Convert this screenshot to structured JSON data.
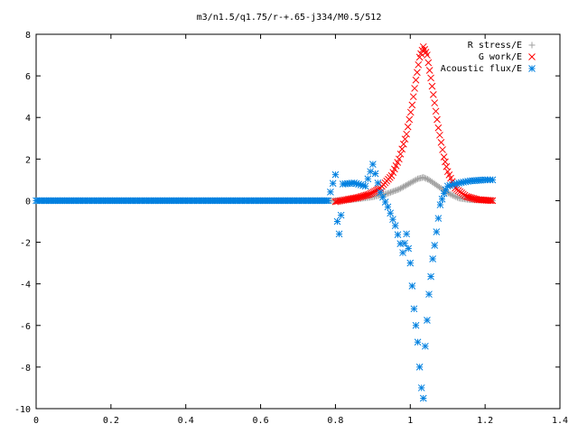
{
  "chart_data": {
    "type": "scatter",
    "title": "m3/n1.5/q1.75/r-+.65-j334/M0.5/512",
    "xlabel": "",
    "ylabel": "",
    "xlim": [
      0,
      1.4
    ],
    "ylim": [
      -10,
      8
    ],
    "xticks": [
      "0",
      "0.2",
      "0.4",
      "0.6",
      "0.8",
      "1",
      "1.2",
      "1.4"
    ],
    "yticks": [
      "-10",
      "-8",
      "-6",
      "-4",
      "-2",
      "0",
      "2",
      "4",
      "6",
      "8"
    ],
    "grid": false,
    "legend_position": "top-right",
    "series": [
      {
        "name": "R stress/E",
        "marker": "plus",
        "color": "#a0a0a0",
        "points": [
          [
            0.0,
            0.0
          ],
          [
            0.2,
            0.0
          ],
          [
            0.4,
            0.0
          ],
          [
            0.6,
            0.0
          ],
          [
            0.8,
            0.0
          ],
          [
            0.82,
            0.02
          ],
          [
            0.86,
            0.08
          ],
          [
            0.9,
            0.18
          ],
          [
            0.94,
            0.35
          ],
          [
            0.97,
            0.55
          ],
          [
            1.0,
            0.85
          ],
          [
            1.02,
            1.05
          ],
          [
            1.035,
            1.12
          ],
          [
            1.05,
            1.0
          ],
          [
            1.07,
            0.75
          ],
          [
            1.09,
            0.5
          ],
          [
            1.11,
            0.28
          ],
          [
            1.13,
            0.12
          ],
          [
            1.16,
            0.04
          ],
          [
            1.2,
            0.02
          ],
          [
            1.22,
            0.01
          ]
        ]
      },
      {
        "name": "G work/E",
        "marker": "cross",
        "color": "#ff0000",
        "points": [
          [
            0.8,
            -0.05
          ],
          [
            0.83,
            0.05
          ],
          [
            0.86,
            0.15
          ],
          [
            0.89,
            0.3
          ],
          [
            0.92,
            0.6
          ],
          [
            0.95,
            1.2
          ],
          [
            0.97,
            2.0
          ],
          [
            0.99,
            3.2
          ],
          [
            1.005,
            4.6
          ],
          [
            1.015,
            5.8
          ],
          [
            1.025,
            6.9
          ],
          [
            1.035,
            7.4
          ],
          [
            1.045,
            7.0
          ],
          [
            1.055,
            5.9
          ],
          [
            1.065,
            4.7
          ],
          [
            1.075,
            3.5
          ],
          [
            1.09,
            2.1
          ],
          [
            1.1,
            1.4
          ],
          [
            1.12,
            0.6
          ],
          [
            1.15,
            0.2
          ],
          [
            1.18,
            0.05
          ],
          [
            1.22,
            0.0
          ]
        ]
      },
      {
        "name": "Acoustic flux/E",
        "marker": "star",
        "color": "#0080e0",
        "points": [
          [
            0.0,
            0.0
          ],
          [
            0.2,
            0.0
          ],
          [
            0.4,
            0.0
          ],
          [
            0.6,
            0.0
          ],
          [
            0.78,
            0.0
          ],
          [
            0.8,
            1.25
          ],
          [
            0.805,
            -1.0
          ],
          [
            0.81,
            -1.6
          ],
          [
            0.815,
            -0.7
          ],
          [
            0.82,
            0.8
          ],
          [
            0.85,
            0.85
          ],
          [
            0.88,
            0.7
          ],
          [
            0.9,
            1.75
          ],
          [
            0.92,
            0.4
          ],
          [
            0.94,
            -0.3
          ],
          [
            0.96,
            -1.2
          ],
          [
            0.98,
            -2.5
          ],
          [
            0.99,
            -1.6
          ],
          [
            1.0,
            -3.0
          ],
          [
            1.01,
            -5.2
          ],
          [
            1.02,
            -6.8
          ],
          [
            1.025,
            -8.0
          ],
          [
            1.03,
            -9.0
          ],
          [
            1.035,
            -9.5
          ],
          [
            1.04,
            -7.0
          ],
          [
            1.05,
            -4.5
          ],
          [
            1.06,
            -2.8
          ],
          [
            1.07,
            -1.5
          ],
          [
            1.08,
            -0.2
          ],
          [
            1.09,
            0.35
          ],
          [
            1.1,
            0.7
          ],
          [
            1.13,
            0.85
          ],
          [
            1.16,
            0.95
          ],
          [
            1.2,
            1.0
          ],
          [
            1.22,
            1.0
          ]
        ]
      }
    ]
  }
}
